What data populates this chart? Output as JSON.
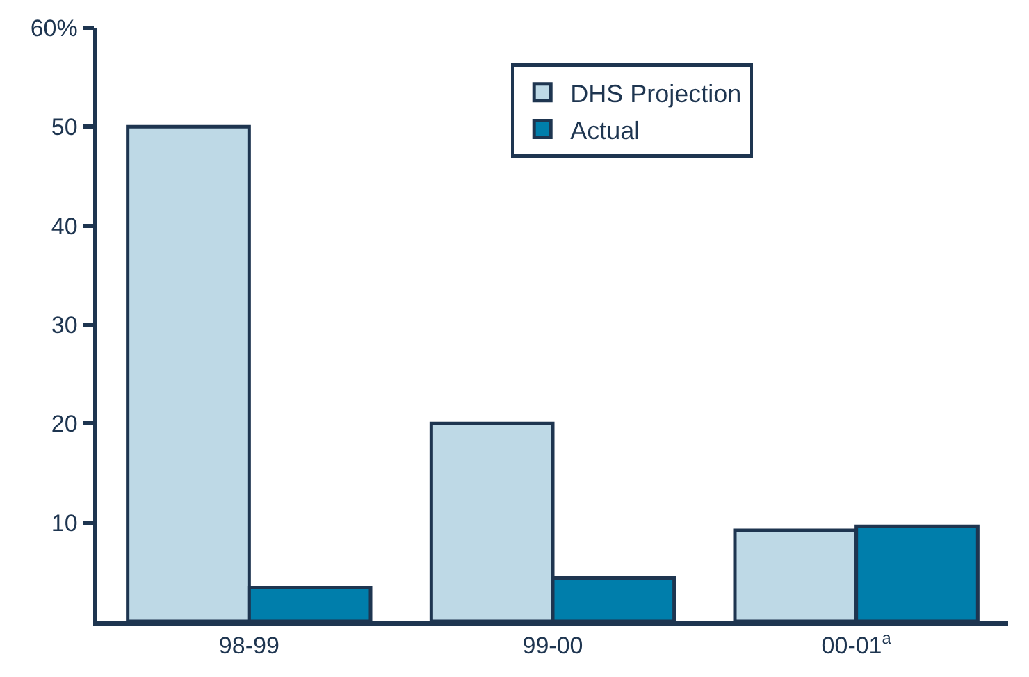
{
  "chart_data": {
    "type": "bar",
    "categories": [
      "98-99",
      "99-00",
      "00-01$^{a}$"
    ],
    "series": [
      {
        "name": "DHS Projection",
        "color": "#bed9e6",
        "values": [
          50,
          20,
          9.2
        ]
      },
      {
        "name": "Actual",
        "color": "#007eab",
        "values": [
          3.4,
          4.4,
          9.6
        ]
      }
    ],
    "ylim": [
      0,
      60
    ],
    "yticks": [
      10,
      20,
      30,
      40,
      50,
      {
        "value": 60,
        "label": "60%"
      }
    ],
    "legend": "top right"
  }
}
